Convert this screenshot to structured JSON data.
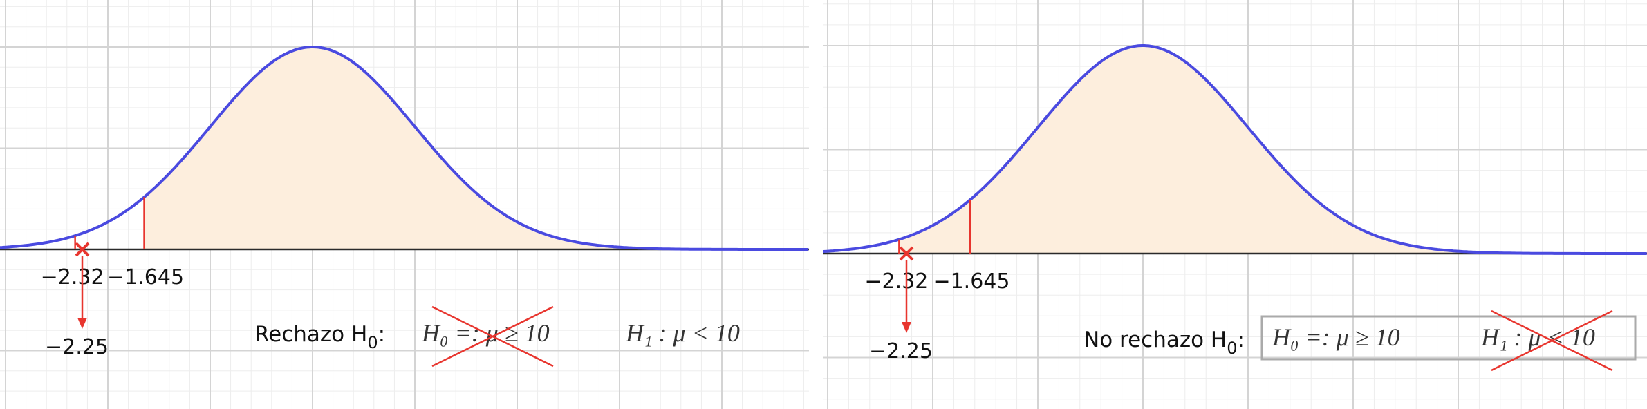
{
  "colors": {
    "curve": "#4a4ae0",
    "fill": "#fdeedd",
    "critical": "#e8352e",
    "axis": "#2a2a2a",
    "grid_major": "#d4d4d4",
    "grid_minor": "#ededed"
  },
  "chart_data": [
    {
      "type": "area",
      "distribution": "standard normal",
      "xlim": [
        -4,
        4
      ],
      "grid": true,
      "critical_values": [
        {
          "x": -2.32,
          "label": "−2.32"
        },
        {
          "x": -1.645,
          "label": "−1.645"
        }
      ],
      "shaded_from": -1.645,
      "test_statistic": {
        "x": -2.25,
        "label": "−2.25"
      },
      "decision": {
        "prefix": "Rechazo H",
        "subscript": "0",
        "suffix": ":"
      },
      "hypotheses": [
        {
          "text": "H₀ =:  μ ≥ 10",
          "crossed": true
        },
        {
          "text": "H₁ :  μ < 10",
          "crossed": false
        }
      ],
      "boxed": false
    },
    {
      "type": "area",
      "distribution": "standard normal",
      "xlim": [
        -4,
        4
      ],
      "grid": true,
      "critical_values": [
        {
          "x": -2.32,
          "label": "−2.32"
        },
        {
          "x": -1.645,
          "label": "−1.645"
        }
      ],
      "shaded_from": -2.32,
      "test_statistic": {
        "x": -2.25,
        "label": "−2.25"
      },
      "decision": {
        "prefix": "No rechazo H",
        "subscript": "0",
        "suffix": ":"
      },
      "hypotheses": [
        {
          "text": "H₀ =:  μ ≥ 10",
          "crossed": false
        },
        {
          "text": "H₁ :  μ < 10",
          "crossed": true
        }
      ],
      "boxed": true
    }
  ]
}
